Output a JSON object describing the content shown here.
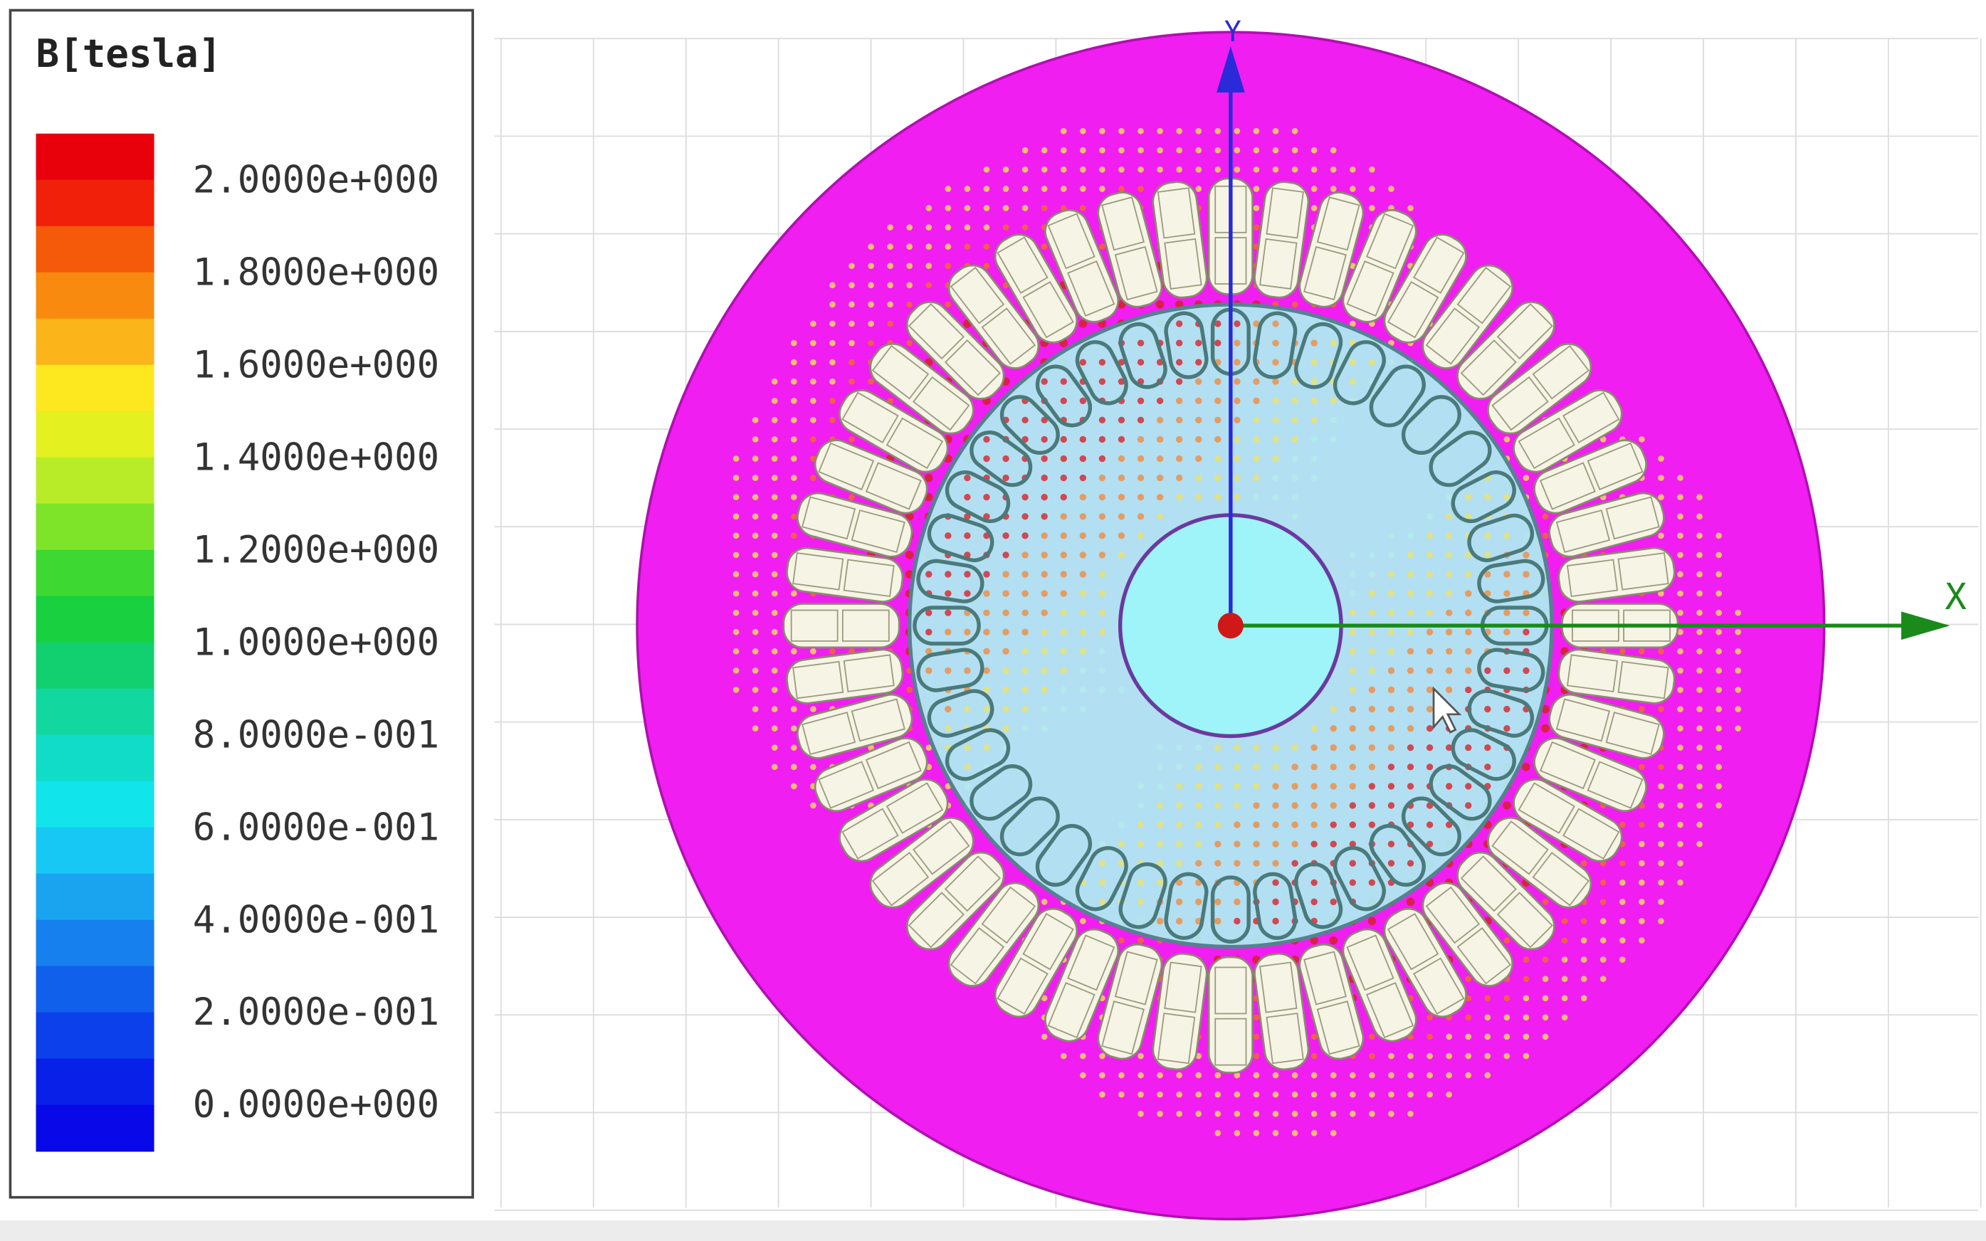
{
  "legend": {
    "title": "B[tesla]",
    "labels": [
      "2.0000e+000",
      "1.8000e+000",
      "1.6000e+000",
      "1.4000e+000",
      "1.2000e+000",
      "1.0000e+000",
      "8.0000e-001",
      "6.0000e-001",
      "4.0000e-001",
      "2.0000e-001",
      "0.0000e+000"
    ]
  },
  "axes": {
    "x": "X",
    "y": "Y"
  }
}
